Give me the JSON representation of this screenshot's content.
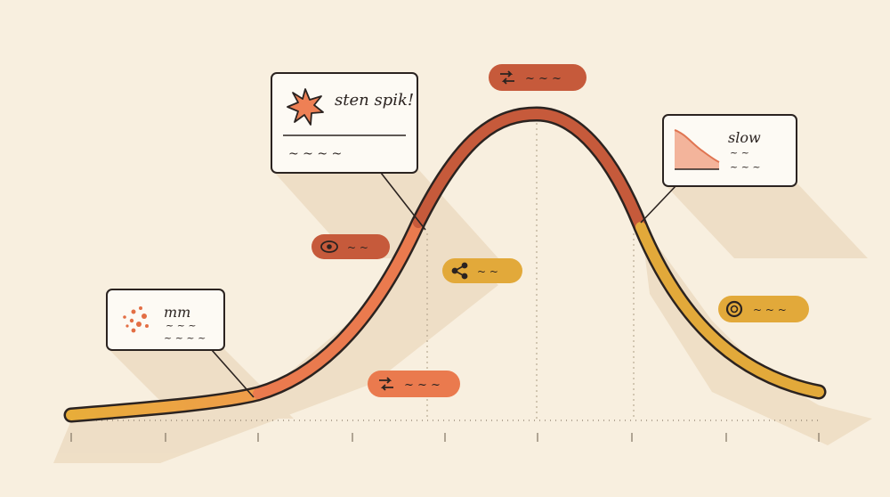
{
  "diagram": {
    "curve": {
      "shape": "bell",
      "segment_colors": [
        "#e8ad3a",
        "#ea7a4e",
        "#c65a3b",
        "#e2a93a"
      ],
      "outline_color": "#2b2320"
    },
    "callouts": [
      {
        "id": "early",
        "icon": "dots-icon",
        "lines": [
          "mm",
          "~ ~ ~",
          "~ ~ ~ ~"
        ]
      },
      {
        "id": "spike",
        "icon": "starburst-icon",
        "title": "sten spik!",
        "caption": "~ ~ ~ ~"
      },
      {
        "id": "slow",
        "icon": "mini-area-chart-icon",
        "title": "slow",
        "lines": [
          "~ ~",
          "~ ~ ~"
        ]
      }
    ],
    "pills": [
      {
        "id": "peak",
        "icon": "repost-icon",
        "color": "#c65a3b",
        "label": "~ ~ ~"
      },
      {
        "id": "view",
        "icon": "eye-icon",
        "color": "#c65a3b",
        "label": "~ ~"
      },
      {
        "id": "share",
        "icon": "share-icon",
        "color": "#e2a93a",
        "label": "~ ~"
      },
      {
        "id": "repost",
        "icon": "repost-icon",
        "color": "#ea7a4e",
        "label": "~ ~ ~"
      },
      {
        "id": "save",
        "icon": "ring-icon",
        "color": "#e2a93a",
        "label": "~ ~ ~"
      }
    ],
    "colors": {
      "background": "#f8efdf",
      "card": "#fdfaf4",
      "ink": "#2b2320",
      "shadow": "#ecdcc3"
    }
  }
}
